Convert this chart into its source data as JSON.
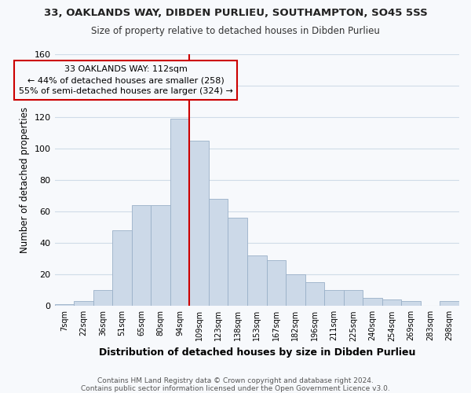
{
  "title1": "33, OAKLANDS WAY, DIBDEN PURLIEU, SOUTHAMPTON, SO45 5SS",
  "title2": "Size of property relative to detached houses in Dibden Purlieu",
  "xlabel": "Distribution of detached houses by size in Dibden Purlieu",
  "ylabel": "Number of detached properties",
  "bin_labels": [
    "7sqm",
    "22sqm",
    "36sqm",
    "51sqm",
    "65sqm",
    "80sqm",
    "94sqm",
    "109sqm",
    "123sqm",
    "138sqm",
    "153sqm",
    "167sqm",
    "182sqm",
    "196sqm",
    "211sqm",
    "225sqm",
    "240sqm",
    "254sqm",
    "269sqm",
    "283sqm",
    "298sqm"
  ],
  "bar_heights": [
    1,
    3,
    10,
    48,
    64,
    64,
    119,
    105,
    68,
    56,
    32,
    29,
    20,
    15,
    10,
    10,
    5,
    4,
    3,
    0,
    3
  ],
  "bar_color": "#ccd9e8",
  "bar_edgecolor": "#9ab0c8",
  "vline_x_index": 7,
  "vline_color": "#cc0000",
  "annotation_title": "33 OAKLANDS WAY: 112sqm",
  "annotation_line1": "← 44% of detached houses are smaller (258)",
  "annotation_line2": "55% of semi-detached houses are larger (324) →",
  "annotation_box_edgecolor": "#cc0000",
  "ylim": [
    0,
    160
  ],
  "yticks": [
    0,
    20,
    40,
    60,
    80,
    100,
    120,
    140,
    160
  ],
  "footer1": "Contains HM Land Registry data © Crown copyright and database right 2024.",
  "footer2": "Contains public sector information licensed under the Open Government Licence v3.0.",
  "background_color": "#f7f9fc",
  "grid_color": "#d0dce8"
}
